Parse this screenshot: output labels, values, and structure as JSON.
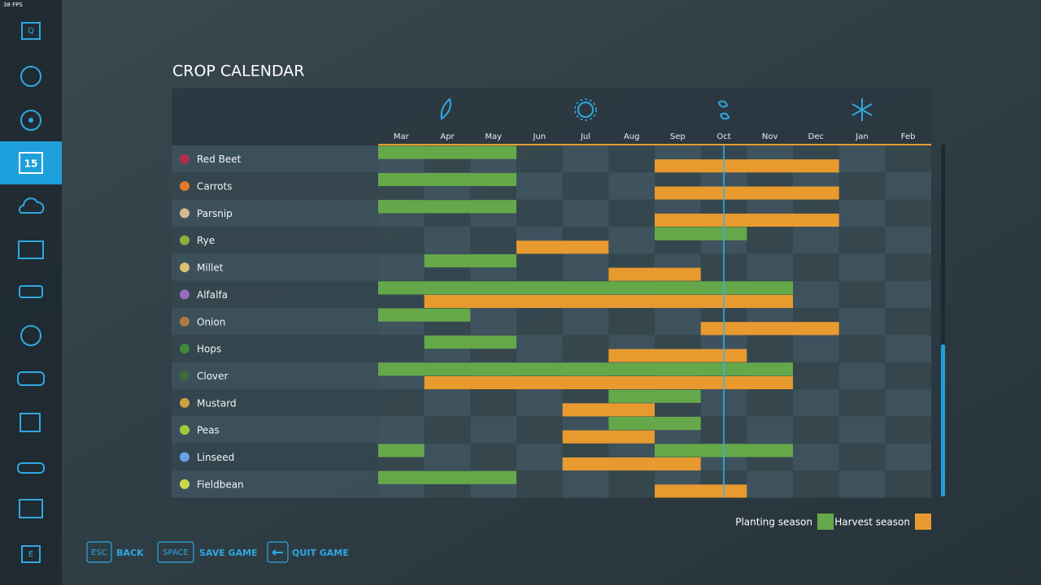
{
  "fps": "38 FPS",
  "sidebar": {
    "top_key": "Q",
    "calendar_day": "15",
    "bottom_key": "E"
  },
  "title": "CROP CALENDAR",
  "months": [
    "Mar",
    "Apr",
    "May",
    "Jun",
    "Jul",
    "Aug",
    "Sep",
    "Oct",
    "Nov",
    "Dec",
    "Jan",
    "Feb"
  ],
  "crops": [
    {
      "name": "Red Beet",
      "planting": [
        [
          0,
          2
        ]
      ],
      "harvest": [
        [
          6,
          9
        ]
      ]
    },
    {
      "name": "Carrots",
      "planting": [
        [
          0,
          2
        ]
      ],
      "harvest": [
        [
          6,
          9
        ]
      ]
    },
    {
      "name": "Parsnip",
      "planting": [
        [
          0,
          2
        ]
      ],
      "harvest": [
        [
          6,
          9
        ]
      ]
    },
    {
      "name": "Rye",
      "planting": [
        [
          6,
          7
        ]
      ],
      "harvest": [
        [
          3,
          4
        ]
      ]
    },
    {
      "name": "Millet",
      "planting": [
        [
          1,
          2
        ]
      ],
      "harvest": [
        [
          5,
          6
        ]
      ]
    },
    {
      "name": "Alfalfa",
      "planting": [
        [
          0,
          8
        ]
      ],
      "harvest": [
        [
          1,
          8
        ]
      ]
    },
    {
      "name": "Onion",
      "planting": [
        [
          0,
          1
        ]
      ],
      "harvest": [
        [
          7,
          9
        ]
      ]
    },
    {
      "name": "Hops",
      "planting": [
        [
          1,
          2
        ]
      ],
      "harvest": [
        [
          5,
          7
        ]
      ]
    },
    {
      "name": "Clover",
      "planting": [
        [
          0,
          8
        ]
      ],
      "harvest": [
        [
          1,
          8
        ]
      ]
    },
    {
      "name": "Mustard",
      "planting": [
        [
          5,
          6
        ]
      ],
      "harvest": [
        [
          4,
          5
        ]
      ]
    },
    {
      "name": "Peas",
      "planting": [
        [
          5,
          6
        ]
      ],
      "harvest": [
        [
          4,
          5
        ]
      ]
    },
    {
      "name": "Linseed",
      "planting": [
        [
          0,
          0
        ],
        [
          6,
          8
        ]
      ],
      "harvest": [
        [
          4,
          6
        ]
      ]
    },
    {
      "name": "Fieldbean",
      "planting": [
        [
          0,
          2
        ]
      ],
      "harvest": [
        [
          6,
          7
        ]
      ]
    }
  ],
  "legend": {
    "planting": "Planting season",
    "harvest": "Harvest season"
  },
  "footer": [
    {
      "key": "ESC",
      "label": "BACK"
    },
    {
      "key": "SPACE",
      "label": "SAVE GAME"
    },
    {
      "label": "QUIT GAME"
    }
  ]
}
